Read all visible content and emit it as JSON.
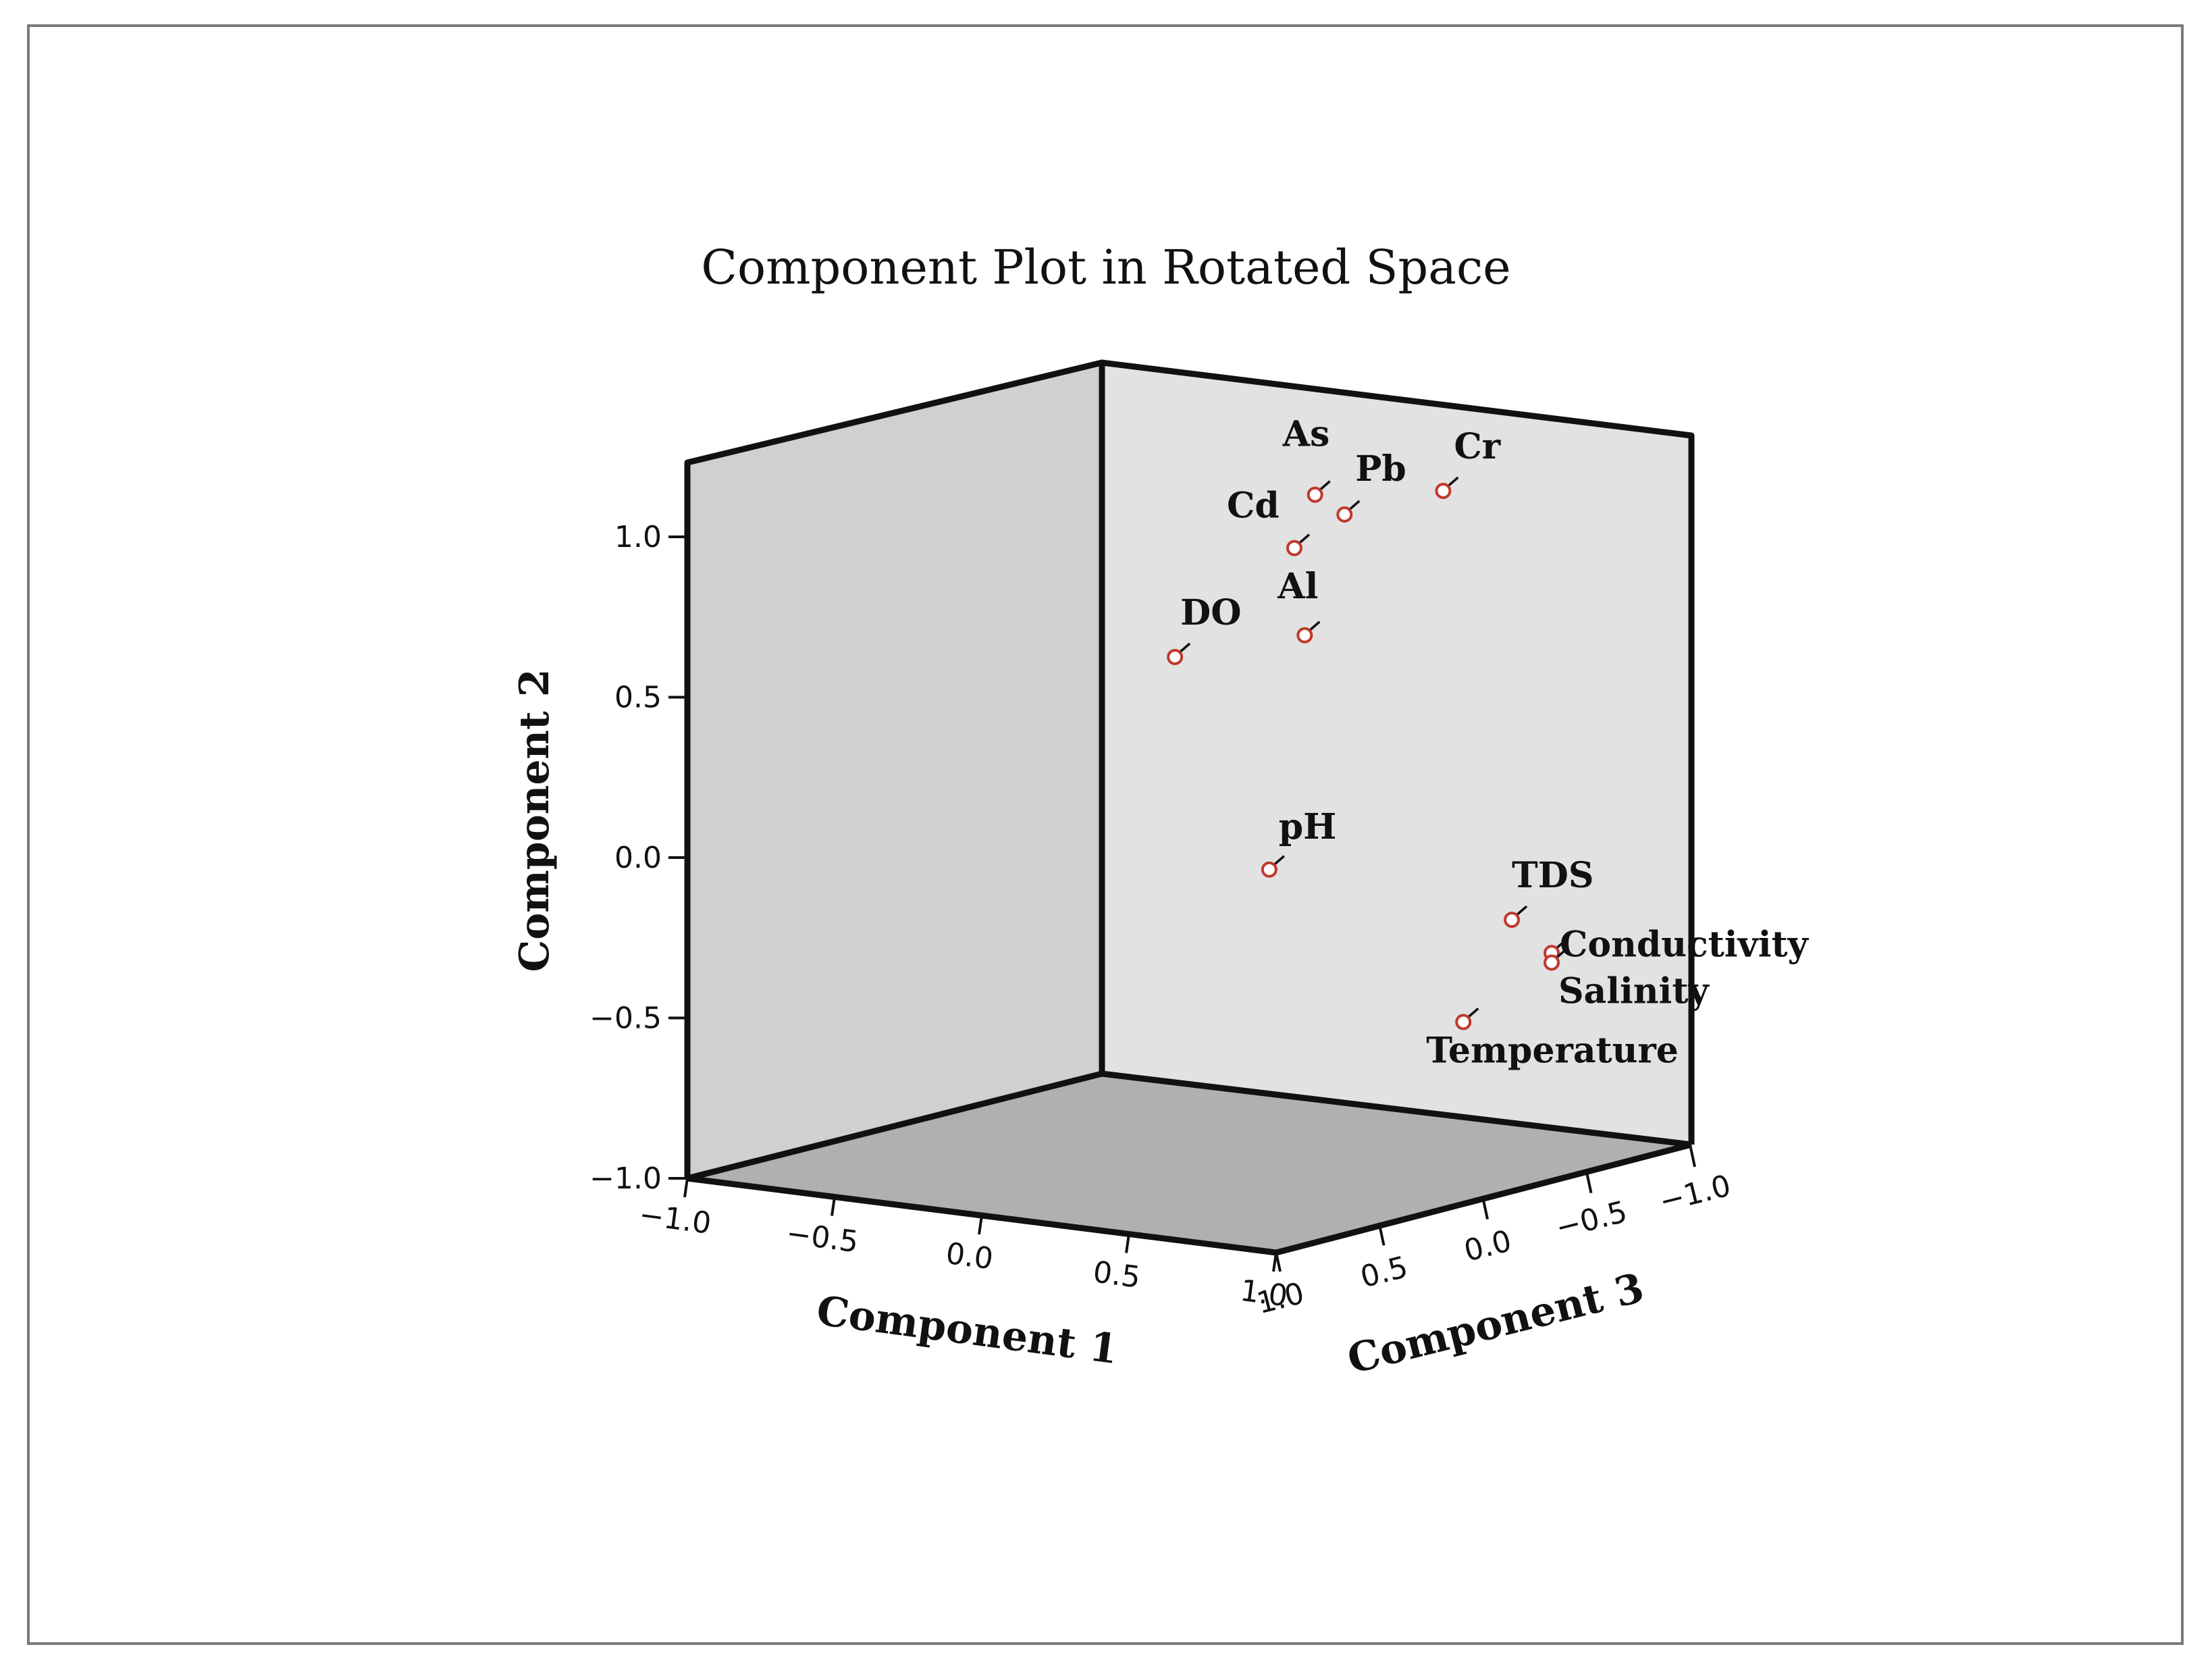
{
  "chart_data": {
    "type": "scatter",
    "title": "Component Plot in Rotated Space",
    "axes": {
      "x": {
        "label": "Component 1",
        "range": [
          -1.0,
          1.0
        ],
        "ticks": [
          "-1.0",
          "-0.5",
          "0.0",
          "0.5",
          "1.0"
        ]
      },
      "y": {
        "label": "Component 2",
        "range": [
          -1.0,
          1.0
        ],
        "ticks": [
          "-1.0",
          "-0.5",
          "0.0",
          "0.5",
          "1.0"
        ]
      },
      "z": {
        "label": "Component 3",
        "range": [
          -1.0,
          1.0
        ],
        "ticks": [
          "1.0",
          "0.5",
          "0.0",
          "-0.5",
          "-1.0"
        ]
      }
    },
    "points": [
      {
        "name": "As",
        "x": -0.1,
        "y": 0.95,
        "z": -0.75
      },
      {
        "name": "Pb",
        "x": 0.0,
        "y": 0.9,
        "z": -0.75
      },
      {
        "name": "Cr",
        "x": 0.3,
        "y": 1.0,
        "z": -0.8
      },
      {
        "name": "Cd",
        "x": -0.1,
        "y": 0.8,
        "z": -0.65
      },
      {
        "name": "Al",
        "x": -0.1,
        "y": 0.52,
        "z": -0.7
      },
      {
        "name": "DO",
        "x": -0.4,
        "y": 0.45,
        "z": -0.5
      },
      {
        "name": "pH",
        "x": -0.15,
        "y": -0.2,
        "z": -0.6
      },
      {
        "name": "TDS",
        "x": 0.85,
        "y": -0.2,
        "z": -0.35
      },
      {
        "name": "Conductivity",
        "x": 0.95,
        "y": -0.3,
        "z": -0.4
      },
      {
        "name": "Salinity",
        "x": 0.95,
        "y": -0.33,
        "z": -0.4
      },
      {
        "name": "Temperature",
        "x": 0.65,
        "y": -0.55,
        "z": -0.4
      }
    ],
    "colors": {
      "marker": "#c0392b",
      "left_wall": "#d0d0d0",
      "right_wall": "#e2e2e2",
      "floor": "#b0b0b0"
    }
  }
}
